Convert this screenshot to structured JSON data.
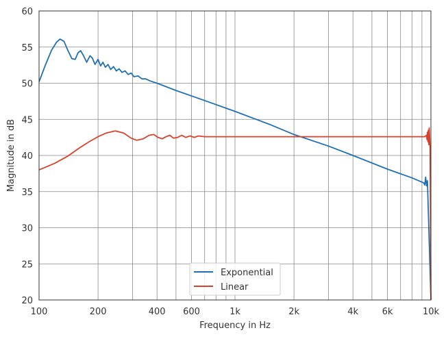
{
  "chart_data": {
    "type": "line",
    "title": "",
    "xlabel": "Frequency in Hz",
    "ylabel": "Magnitude in dB",
    "xscale": "log",
    "xlim": [
      100,
      10000
    ],
    "ylim": [
      20,
      60
    ],
    "xticks": [
      100,
      200,
      400,
      600,
      1000,
      2000,
      4000,
      6000,
      10000
    ],
    "xtick_labels": [
      "100",
      "200",
      "400",
      "600",
      "1k",
      "2k",
      "4k",
      "6k",
      "10k"
    ],
    "yticks": [
      20,
      25,
      30,
      35,
      40,
      45,
      50,
      55,
      60
    ],
    "ytick_labels": [
      "20",
      "25",
      "30",
      "35",
      "40",
      "45",
      "50",
      "55",
      "60"
    ],
    "grid": true,
    "legend_placement": "lower-center",
    "series": [
      {
        "name": "Exponential",
        "color": "#1f6fb4",
        "x": [
          100,
          108,
          116,
          123,
          128,
          134,
          140,
          147,
          153,
          158,
          163,
          168,
          175,
          182,
          187,
          193,
          200,
          206,
          212,
          218,
          225,
          232,
          240,
          248,
          256,
          265,
          275,
          285,
          295,
          305,
          320,
          335,
          350,
          370,
          400,
          500,
          700,
          1000,
          1500,
          2000,
          3000,
          4000,
          6000,
          8000,
          9200,
          9300,
          9400,
          9500,
          9600,
          10000
        ],
        "y": [
          50.2,
          52.6,
          54.6,
          55.7,
          56.1,
          55.8,
          54.6,
          53.4,
          53.3,
          54.2,
          54.5,
          53.9,
          52.9,
          53.8,
          53.5,
          52.6,
          53.3,
          52.4,
          52.9,
          52.2,
          52.6,
          51.9,
          52.3,
          51.7,
          52.0,
          51.5,
          51.7,
          51.2,
          51.4,
          50.9,
          51.0,
          50.6,
          50.6,
          50.3,
          50.0,
          49.0,
          47.6,
          46.1,
          44.3,
          42.9,
          41.3,
          40.0,
          38.1,
          36.9,
          36.2,
          35.9,
          37.0,
          35.8,
          36.5,
          20
        ]
      },
      {
        "name": "Linear",
        "color": "#d9412b",
        "x": [
          100,
          120,
          140,
          160,
          180,
          200,
          220,
          245,
          270,
          295,
          315,
          340,
          365,
          385,
          405,
          425,
          445,
          465,
          485,
          510,
          535,
          560,
          590,
          620,
          650,
          700,
          800,
          1000,
          2000,
          5000,
          9300,
          9500,
          9550,
          9600,
          9650,
          9700,
          9750,
          9800,
          9900,
          10000
        ],
        "y": [
          38.0,
          38.9,
          39.9,
          41.0,
          41.9,
          42.6,
          43.1,
          43.4,
          43.1,
          42.4,
          42.1,
          42.3,
          42.8,
          42.9,
          42.5,
          42.3,
          42.6,
          42.8,
          42.4,
          42.5,
          42.8,
          42.5,
          42.7,
          42.5,
          42.7,
          42.6,
          42.6,
          42.6,
          42.6,
          42.6,
          42.6,
          42.8,
          42.2,
          43.2,
          41.9,
          43.5,
          41.5,
          43.8,
          41.0,
          20
        ]
      }
    ]
  }
}
